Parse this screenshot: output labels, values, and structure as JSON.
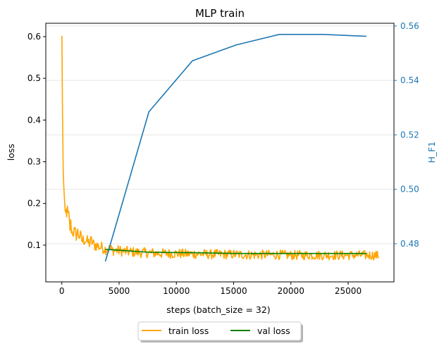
{
  "chart_data": {
    "type": "line",
    "title": "MLP train",
    "xlabel": "steps (batch_size = 32)",
    "ylabel": "loss",
    "ylabel_right": "H_F1",
    "xlim": [
      -1400,
      29000
    ],
    "ylim": [
      0.012,
      0.632
    ],
    "ylim_right": [
      0.466,
      0.561
    ],
    "x_ticks": [
      0,
      5000,
      10000,
      15000,
      20000,
      25000
    ],
    "y_ticks": [
      0.1,
      0.2,
      0.3,
      0.4,
      0.5,
      0.6
    ],
    "y_ticks_right": [
      0.48,
      0.5,
      0.52,
      0.54,
      0.56
    ],
    "grid": "horizontal (right axis)",
    "legend_position": "bottom-center outside",
    "series": [
      {
        "name": "train loss",
        "axis": "left",
        "color": "#ffa500",
        "x": [
          0,
          100,
          200,
          300,
          400,
          500,
          600,
          700,
          800,
          900,
          1000,
          1200,
          1400,
          1600,
          1800,
          2000,
          2200,
          2400,
          2600,
          2800,
          3000,
          3200,
          3400,
          3600,
          3800,
          4000,
          4500,
          5000,
          5500,
          6000,
          6500,
          7000,
          7500,
          8000,
          9000,
          10000,
          11000,
          12000,
          13000,
          14000,
          15000,
          16000,
          17000,
          18000,
          19000,
          20000,
          21000,
          22000,
          23000,
          24000,
          25000,
          26000,
          27000,
          27700
        ],
        "values": [
          0.602,
          0.29,
          0.22,
          0.18,
          0.19,
          0.17,
          0.165,
          0.14,
          0.15,
          0.13,
          0.135,
          0.125,
          0.13,
          0.12,
          0.11,
          0.115,
          0.108,
          0.105,
          0.11,
          0.1,
          0.1,
          0.097,
          0.095,
          0.094,
          0.09,
          0.092,
          0.088,
          0.087,
          0.085,
          0.084,
          0.083,
          0.082,
          0.082,
          0.081,
          0.08,
          0.08,
          0.079,
          0.079,
          0.078,
          0.078,
          0.078,
          0.077,
          0.077,
          0.077,
          0.077,
          0.076,
          0.076,
          0.076,
          0.076,
          0.076,
          0.076,
          0.076,
          0.076,
          0.075
        ]
      },
      {
        "name": "val loss",
        "axis": "left",
        "color": "#008000",
        "x": [
          3800,
          7600,
          11400,
          15200,
          19000,
          22800,
          26600
        ],
        "values": [
          0.09,
          0.083,
          0.082,
          0.08,
          0.08,
          0.08,
          0.08
        ]
      },
      {
        "name": "H_F1",
        "axis": "right",
        "color": "#1f77b4",
        "x": [
          3800,
          7600,
          11400,
          15200,
          19000,
          22800,
          26600
        ],
        "values": [
          0.4735,
          0.5285,
          0.5472,
          0.553,
          0.5569,
          0.5569,
          0.5562
        ]
      }
    ]
  }
}
